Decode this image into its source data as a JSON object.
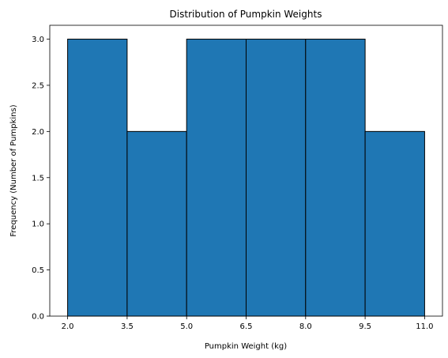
{
  "chart_data": {
    "type": "bar",
    "title": "Distribution of Pumpkin Weights",
    "xlabel": "Pumpkin Weight (kg)",
    "ylabel": "Frequency (Number of Pumpkins)",
    "bin_edges": [
      2.0,
      3.5,
      5.0,
      6.5,
      8.0,
      9.5,
      11.0
    ],
    "values": [
      3,
      2,
      3,
      3,
      3,
      2
    ],
    "xlim": [
      1.55,
      11.45
    ],
    "ylim": [
      0,
      3.15
    ],
    "xticks": [
      "2.0",
      "3.5",
      "5.0",
      "6.5",
      "8.0",
      "9.5",
      "11.0"
    ],
    "yticks": [
      "0.0",
      "0.5",
      "1.0",
      "1.5",
      "2.0",
      "2.5",
      "3.0"
    ],
    "bar_color": "#1f77b4",
    "edge_color": "#000000",
    "grid": false,
    "legend": "none"
  }
}
